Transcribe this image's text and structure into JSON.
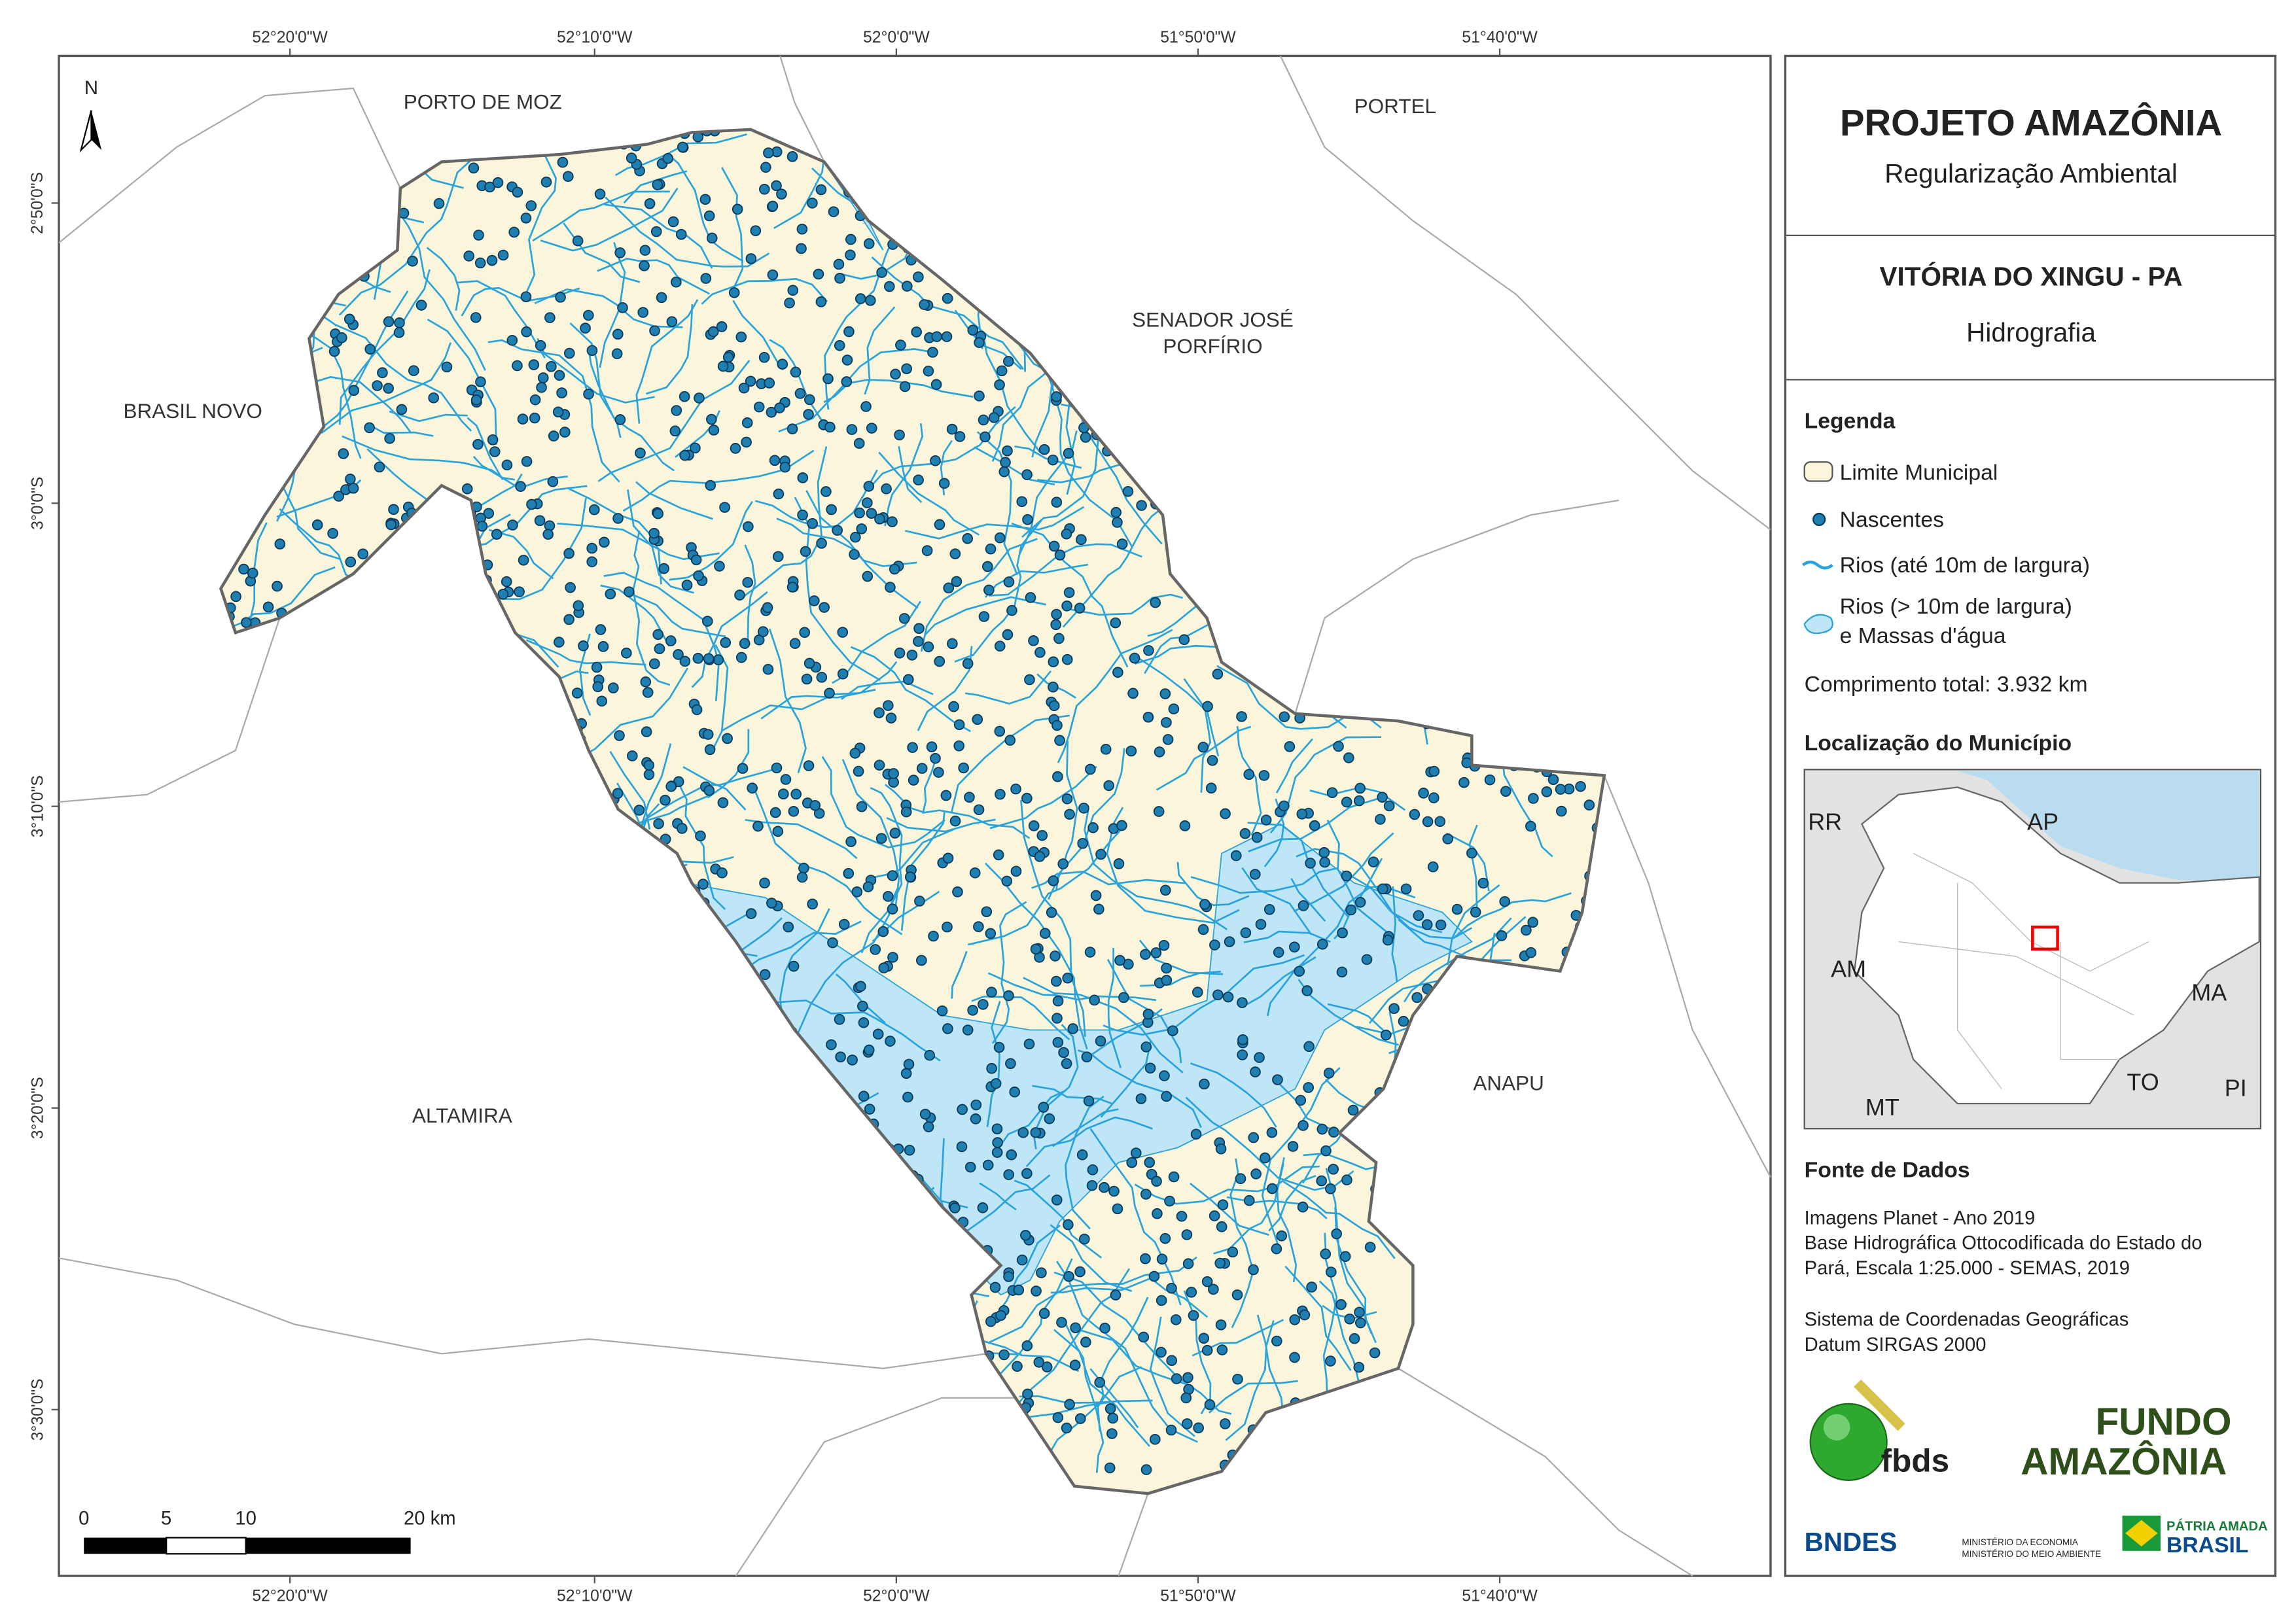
{
  "map": {
    "longitude_labels": [
      "52°20'0\"W",
      "52°10'0\"W",
      "52°0'0\"W",
      "51°50'0\"W",
      "51°40'0\"W"
    ],
    "latitude_labels": [
      "2°50'0\"S",
      "3°0'0\"S",
      "3°10'0\"S",
      "3°20'0\"S",
      "3°30'0\"S"
    ],
    "place_labels": {
      "porto_de_moz": "PORTO DE MOZ",
      "portel": "PORTEL",
      "senador_line1": "SENADOR JOSÉ",
      "senador_line2": "PORFÍRIO",
      "brasil_novo": "BRASIL NOVO",
      "altamira": "ALTAMIRA",
      "anapu": "ANAPU"
    },
    "north": "N",
    "scale_bar": [
      "0",
      "5",
      "10",
      "20 km"
    ]
  },
  "panel": {
    "title": "PROJETO AMAZÔNIA",
    "subtitle": "Regularização Ambiental",
    "municipality": "VITÓRIA DO XINGU - PA",
    "theme": "Hidrografia",
    "legend": {
      "title": "Legenda",
      "limit": "Limite Municipal",
      "springs": "Nascentes",
      "small_rivers": "Rios (até 10m de largura)",
      "large_rivers_line1": "Rios (> 10m de largura)",
      "large_rivers_line2": "e Massas d'água",
      "total": "Comprimento total:  3.932 km"
    },
    "location": {
      "title": "Localização do Município",
      "labels": [
        "RR",
        "AP",
        "AM",
        "MA",
        "TO",
        "MT",
        "PI"
      ]
    },
    "sources": {
      "title": "Fonte de Dados",
      "lines": [
        "Imagens Planet - Ano 2019",
        "Base Hidrográfica Ottocodificada do Estado do",
        "Pará, Escala 1:25.000 - SEMAS, 2019",
        "Sistema de Coordenadas Geográficas",
        "Datum SIRGAS 2000"
      ]
    },
    "logos": {
      "fbds": "fbds",
      "fundo1": "FUNDO",
      "fundo2": "AMAZÔNIA",
      "bndes": "BNDES",
      "min1": "MINISTÉRIO DA ECONOMIA",
      "min2": "MINISTÉRIO DO MEIO AMBIENTE",
      "patria": "PÁTRIA AMADA",
      "brasil": "BRASIL"
    }
  }
}
